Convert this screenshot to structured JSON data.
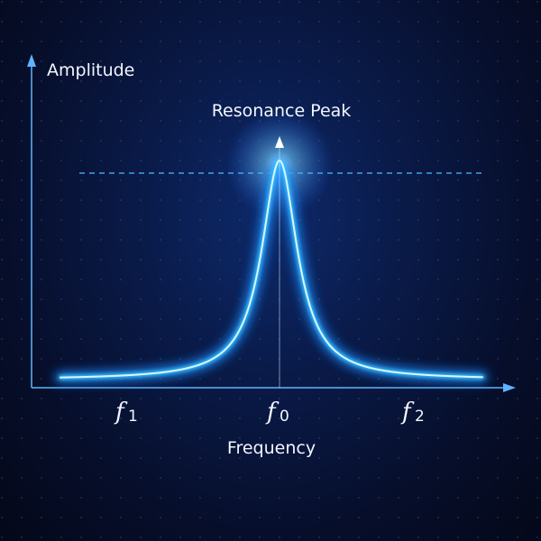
{
  "diagram": {
    "y_axis_label": "Amplitude",
    "x_axis_label": "Frequency",
    "peak_label": "Resonance Peak",
    "ticks": [
      {
        "base": "f",
        "sub": "1"
      },
      {
        "base": "f",
        "sub": "0"
      },
      {
        "base": "f",
        "sub": "2"
      }
    ],
    "colors": {
      "curve": "#39c6ff",
      "curve_core": "#d8f6ff",
      "axis": "#5fb4ff",
      "background": "#0a1a48"
    }
  }
}
